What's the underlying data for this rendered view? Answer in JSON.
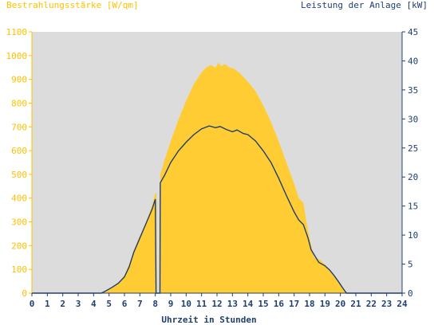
{
  "chart_data": {
    "type": "area",
    "title_left": "Bestrahlungsstärke [W/qm]",
    "title_right": "Leistung der Anlage [kW]",
    "xlabel": "Uhrzeit in Stunden",
    "x_ticks": [
      "0",
      "1",
      "2",
      "3",
      "4",
      "5",
      "6",
      "7",
      "8",
      "9",
      "10",
      "11",
      "12",
      "13",
      "14",
      "15",
      "16",
      "17",
      "18",
      "19",
      "20",
      "21",
      "22",
      "23",
      "24"
    ],
    "xlim": [
      0,
      24
    ],
    "y_left": {
      "ylim": [
        0,
        1100
      ],
      "ticks": [
        "0",
        "100",
        "200",
        "300",
        "400",
        "500",
        "600",
        "700",
        "800",
        "900",
        "1000",
        "1100"
      ],
      "color": "#ffc000"
    },
    "y_right": {
      "ylim": [
        0,
        45
      ],
      "ticks": [
        "0",
        "5",
        "10",
        "15",
        "20",
        "25",
        "30",
        "35",
        "40",
        "45"
      ],
      "color": "#1f3f6f"
    },
    "grid": false,
    "plot_background": "#dcdcdc",
    "series": [
      {
        "axis": "left",
        "kind": "area",
        "color": "#ffcc33",
        "points": [
          [
            0,
            0
          ],
          [
            4.4,
            0
          ],
          [
            4.8,
            10
          ],
          [
            5.2,
            25
          ],
          [
            5.6,
            45
          ],
          [
            6.0,
            75
          ],
          [
            6.3,
            120
          ],
          [
            6.6,
            180
          ],
          [
            7.0,
            240
          ],
          [
            7.4,
            300
          ],
          [
            7.8,
            370
          ],
          [
            8.0,
            420
          ],
          [
            8.08,
            420
          ],
          [
            8.1,
            0
          ],
          [
            8.3,
            0
          ],
          [
            8.32,
            500
          ],
          [
            8.6,
            560
          ],
          [
            9.0,
            640
          ],
          [
            9.5,
            730
          ],
          [
            10.0,
            810
          ],
          [
            10.5,
            880
          ],
          [
            11.0,
            930
          ],
          [
            11.3,
            950
          ],
          [
            11.6,
            960
          ],
          [
            11.9,
            950
          ],
          [
            12.1,
            970
          ],
          [
            12.3,
            955
          ],
          [
            12.5,
            965
          ],
          [
            12.8,
            950
          ],
          [
            13.1,
            945
          ],
          [
            13.5,
            925
          ],
          [
            14.0,
            890
          ],
          [
            14.5,
            850
          ],
          [
            15.0,
            790
          ],
          [
            15.5,
            720
          ],
          [
            16.0,
            640
          ],
          [
            16.5,
            550
          ],
          [
            17.0,
            460
          ],
          [
            17.3,
            400
          ],
          [
            17.6,
            380
          ],
          [
            17.8,
            300
          ],
          [
            18.0,
            230
          ],
          [
            18.3,
            150
          ],
          [
            18.7,
            140
          ],
          [
            19.0,
            120
          ],
          [
            19.3,
            100
          ],
          [
            19.6,
            75
          ],
          [
            19.9,
            45
          ],
          [
            20.2,
            15
          ],
          [
            20.5,
            0
          ],
          [
            24,
            0
          ]
        ]
      },
      {
        "axis": "right",
        "kind": "line",
        "color": "#1f3f6f",
        "points": [
          [
            0,
            0
          ],
          [
            4.5,
            0
          ],
          [
            4.8,
            0.4
          ],
          [
            5.2,
            1.0
          ],
          [
            5.6,
            1.7
          ],
          [
            6.0,
            2.8
          ],
          [
            6.3,
            4.5
          ],
          [
            6.6,
            7.0
          ],
          [
            7.0,
            9.5
          ],
          [
            7.4,
            12.0
          ],
          [
            7.8,
            14.5
          ],
          [
            8.0,
            16.2
          ],
          [
            8.05,
            0
          ],
          [
            8.3,
            0
          ],
          [
            8.32,
            19.0
          ],
          [
            8.6,
            20.3
          ],
          [
            9.0,
            22.5
          ],
          [
            9.5,
            24.5
          ],
          [
            10.0,
            26.0
          ],
          [
            10.5,
            27.3
          ],
          [
            11.0,
            28.3
          ],
          [
            11.5,
            28.8
          ],
          [
            11.9,
            28.5
          ],
          [
            12.2,
            28.7
          ],
          [
            12.6,
            28.2
          ],
          [
            13.0,
            27.8
          ],
          [
            13.3,
            28.1
          ],
          [
            13.7,
            27.5
          ],
          [
            14.0,
            27.3
          ],
          [
            14.5,
            26.2
          ],
          [
            15.0,
            24.5
          ],
          [
            15.5,
            22.5
          ],
          [
            16.0,
            19.8
          ],
          [
            16.5,
            16.8
          ],
          [
            17.0,
            14.0
          ],
          [
            17.3,
            12.6
          ],
          [
            17.6,
            11.8
          ],
          [
            17.9,
            9.5
          ],
          [
            18.1,
            7.5
          ],
          [
            18.3,
            6.6
          ],
          [
            18.6,
            5.3
          ],
          [
            19.0,
            4.7
          ],
          [
            19.3,
            4.0
          ],
          [
            19.6,
            3.0
          ],
          [
            19.9,
            1.9
          ],
          [
            20.2,
            0.7
          ],
          [
            20.4,
            0
          ],
          [
            24,
            0
          ]
        ]
      }
    ]
  }
}
